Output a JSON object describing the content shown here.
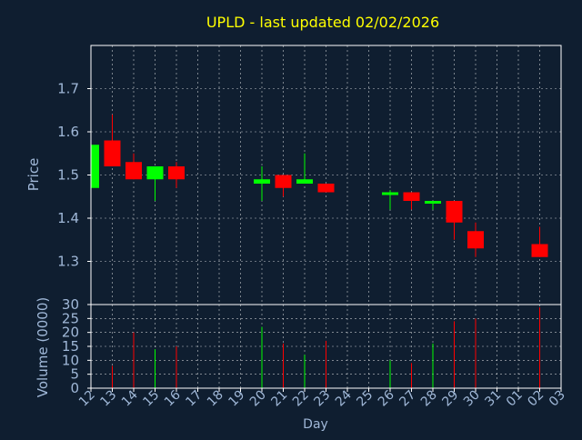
{
  "colors": {
    "background": "#0f1e30",
    "plot_bg": "#0f1e30",
    "frame": "#ffffff",
    "grid": "#ffffff",
    "title": "#ffff00",
    "axis_text": "#a0b8d8",
    "up": "#00ff00",
    "down": "#ff0000"
  },
  "chart_data": [
    {
      "type": "candlestick",
      "title": "UPLD - last updated 02/02/2026",
      "ylabel": "Price",
      "ylim": [
        1.2,
        1.8
      ],
      "yticks": [
        "1.3",
        "1.4",
        "1.5",
        "1.6",
        "1.7"
      ],
      "grid": true,
      "x_tick_labels": [
        "12",
        "13",
        "14",
        "15",
        "16",
        "17",
        "18",
        "19",
        "20",
        "21",
        "22",
        "23",
        "24",
        "25",
        "26",
        "27",
        "28",
        "29",
        "30",
        "31",
        "01",
        "02",
        "03"
      ],
      "candles": [
        {
          "day": "12",
          "open": 1.47,
          "high": 1.57,
          "low": 1.47,
          "close": 1.57
        },
        {
          "day": "13",
          "open": 1.58,
          "high": 1.64,
          "low": 1.52,
          "close": 1.52
        },
        {
          "day": "14",
          "open": 1.53,
          "high": 1.55,
          "low": 1.49,
          "close": 1.49
        },
        {
          "day": "15",
          "open": 1.49,
          "high": 1.52,
          "low": 1.44,
          "close": 1.52
        },
        {
          "day": "16",
          "open": 1.52,
          "high": 1.53,
          "low": 1.47,
          "close": 1.49
        },
        {
          "day": "20",
          "open": 1.48,
          "high": 1.52,
          "low": 1.44,
          "close": 1.49
        },
        {
          "day": "21",
          "open": 1.5,
          "high": 1.5,
          "low": 1.45,
          "close": 1.47
        },
        {
          "day": "22",
          "open": 1.48,
          "high": 1.55,
          "low": 1.48,
          "close": 1.49
        },
        {
          "day": "23",
          "open": 1.48,
          "high": 1.48,
          "low": 1.46,
          "close": 1.46
        },
        {
          "day": "26",
          "open": 1.46,
          "high": 1.465,
          "low": 1.42,
          "close": 1.46
        },
        {
          "day": "27",
          "open": 1.46,
          "high": 1.46,
          "low": 1.42,
          "close": 1.44
        },
        {
          "day": "28",
          "open": 1.44,
          "high": 1.44,
          "low": 1.42,
          "close": 1.44
        },
        {
          "day": "29",
          "open": 1.44,
          "high": 1.44,
          "low": 1.35,
          "close": 1.39
        },
        {
          "day": "30",
          "open": 1.37,
          "high": 1.39,
          "low": 1.31,
          "close": 1.33
        },
        {
          "day": "02",
          "open": 1.34,
          "high": 1.38,
          "low": 1.31,
          "close": 1.31
        }
      ]
    },
    {
      "type": "bar",
      "ylabel": "Volume (0000)",
      "xlabel": "Day",
      "ylim": [
        0,
        30
      ],
      "yticks": [
        "0",
        "5",
        "10",
        "15",
        "20",
        "25",
        "30"
      ],
      "grid": true,
      "volumes": [
        {
          "day": "13",
          "value": 8,
          "dir": "down"
        },
        {
          "day": "14",
          "value": 20,
          "dir": "down"
        },
        {
          "day": "15",
          "value": 14,
          "dir": "up"
        },
        {
          "day": "16",
          "value": 15,
          "dir": "down"
        },
        {
          "day": "20",
          "value": 22,
          "dir": "up"
        },
        {
          "day": "21",
          "value": 16,
          "dir": "down"
        },
        {
          "day": "22",
          "value": 12,
          "dir": "up"
        },
        {
          "day": "23",
          "value": 17,
          "dir": "down"
        },
        {
          "day": "26",
          "value": 10,
          "dir": "up"
        },
        {
          "day": "27",
          "value": 9,
          "dir": "down"
        },
        {
          "day": "28",
          "value": 16,
          "dir": "up"
        },
        {
          "day": "29",
          "value": 24,
          "dir": "down"
        },
        {
          "day": "30",
          "value": 25,
          "dir": "down"
        },
        {
          "day": "02",
          "value": 29,
          "dir": "down"
        }
      ]
    }
  ]
}
